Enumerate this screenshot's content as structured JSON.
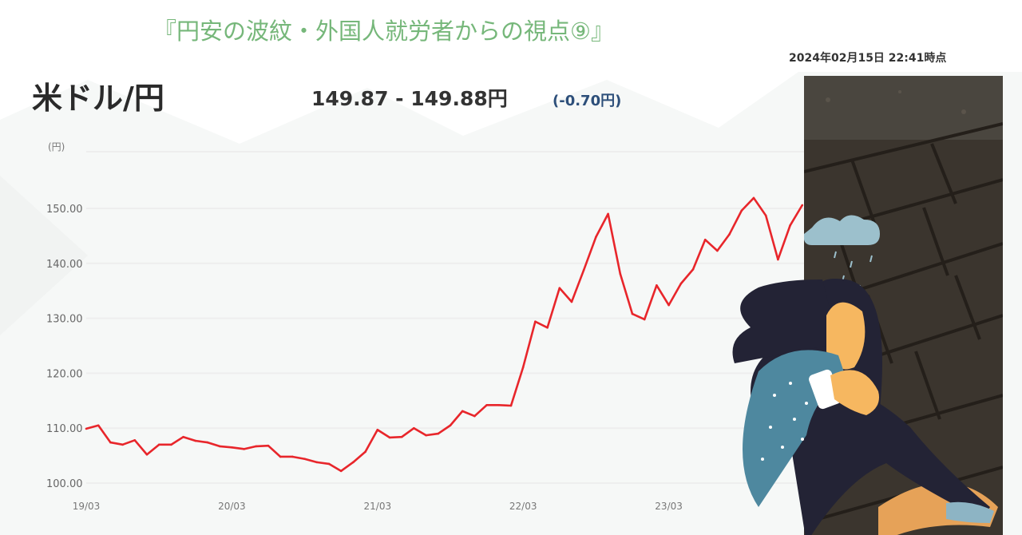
{
  "header": {
    "title": "『円安の波紋・外国人就労者からの視点⑨』",
    "timestamp": "2024年02月15日 22:41時点",
    "pair": "米ドル/円",
    "quote": "149.87 - 149.88円",
    "change": "(-0.70円)"
  },
  "colors": {
    "title": "#76b77a",
    "line": "#e8262b",
    "change": "#2d4f7a"
  },
  "illustration": {
    "subject": "sad woman sitting under rain cloud on dark paved ground"
  },
  "chart_data": {
    "type": "line",
    "title": "米ドル/円",
    "ylabel": "(円)",
    "xlabel": "",
    "ylim": [
      100,
      150
    ],
    "yticks": [
      "100.00",
      "110.00",
      "120.00",
      "130.00",
      "140.00",
      "150.00"
    ],
    "xticks": [
      "19/03",
      "20/03",
      "21/03",
      "22/03",
      "23/03"
    ],
    "grid": true,
    "x": [
      "19/03",
      "19/04",
      "19/05",
      "19/06",
      "19/07",
      "19/08",
      "19/09",
      "19/10",
      "19/11",
      "19/12",
      "20/01",
      "20/02",
      "20/03",
      "20/04",
      "20/05",
      "20/06",
      "20/07",
      "20/08",
      "20/09",
      "20/10",
      "20/11",
      "20/12",
      "21/01",
      "21/02",
      "21/03",
      "21/04",
      "21/05",
      "21/06",
      "21/07",
      "21/08",
      "21/09",
      "21/10",
      "21/11",
      "21/12",
      "22/01",
      "22/02",
      "22/03",
      "22/04",
      "22/05",
      "22/06",
      "22/07",
      "22/08",
      "22/09",
      "22/10",
      "22/11",
      "22/12",
      "23/01",
      "23/02",
      "23/03",
      "23/04",
      "23/05",
      "23/06",
      "23/07",
      "23/08",
      "23/09",
      "23/10",
      "23/11",
      "23/12",
      "24/01",
      "24/02"
    ],
    "values": [
      109.9,
      110.5,
      107.4,
      107.0,
      107.8,
      105.2,
      107.0,
      107.0,
      108.4,
      107.7,
      107.4,
      106.7,
      106.5,
      106.2,
      106.7,
      106.8,
      104.8,
      104.8,
      104.4,
      103.8,
      103.5,
      102.2,
      103.8,
      105.7,
      109.7,
      108.3,
      108.4,
      110.0,
      108.7,
      109.0,
      110.5,
      113.1,
      112.2,
      114.2,
      114.2,
      114.1,
      121.1,
      129.4,
      128.3,
      135.5,
      133.0,
      138.8,
      144.8,
      149.0,
      138.1,
      130.8,
      129.8,
      136.0,
      132.4,
      136.3,
      138.9,
      144.3,
      142.3,
      145.3,
      149.6,
      151.9,
      148.7,
      140.7,
      146.9,
      150.6
    ]
  }
}
